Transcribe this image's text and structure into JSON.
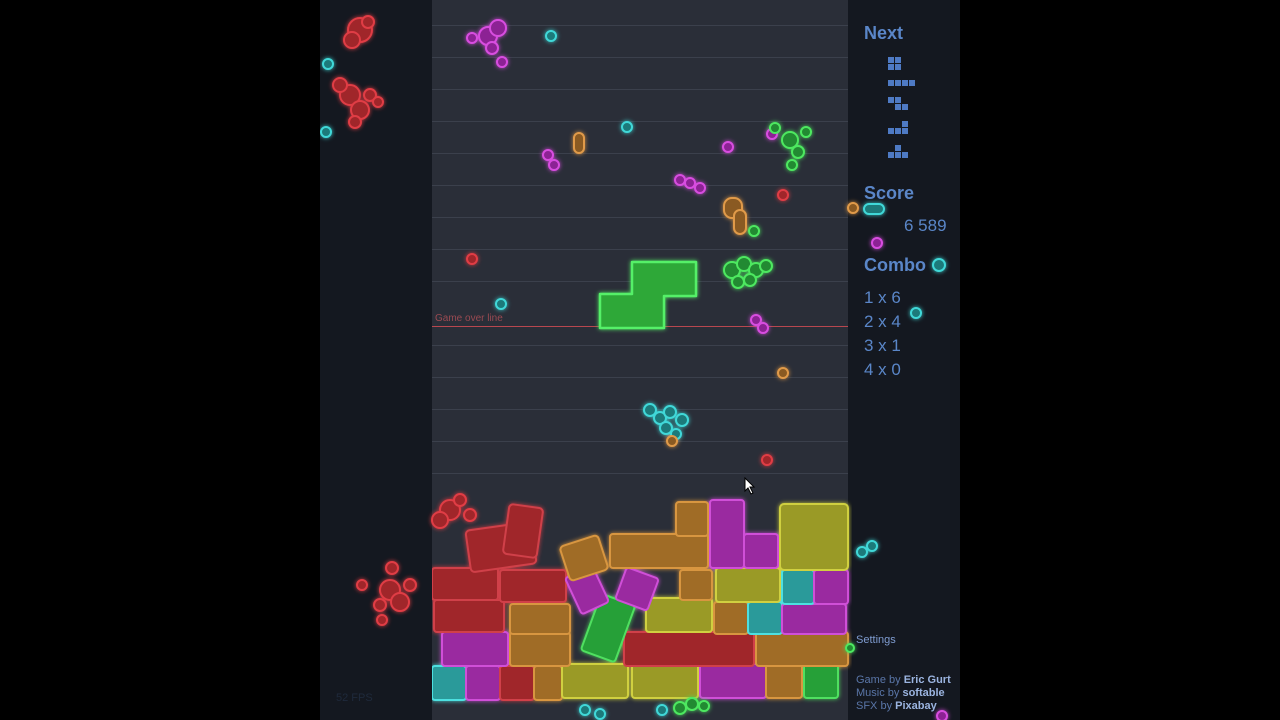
{
  "game": {
    "gameover_label": "Game over line",
    "next_title": "Next",
    "next_queue": [
      "O",
      "I",
      "Z",
      "L",
      "T"
    ],
    "score_title": "Score",
    "score_value": "6 589",
    "combo_title": "Combo",
    "combos": [
      {
        "label": "1 x 6"
      },
      {
        "label": "2 x 4"
      },
      {
        "label": "3 x 1"
      },
      {
        "label": "4 x 0"
      }
    ],
    "settings_label": "Settings",
    "credits": [
      {
        "role": "Game by ",
        "name": "Eric Gurt"
      },
      {
        "role": "Music by ",
        "name": "softable"
      },
      {
        "role": "SFX by ",
        "name": "Pixabay"
      }
    ],
    "fps": "52 FPS",
    "falling_piece": {
      "type": "S",
      "color": "green"
    }
  },
  "colors": {
    "red": "#b8282e",
    "orange": "#c8802e",
    "yellow": "#b8b830",
    "purple": "#b02ab8",
    "cyan": "#2ab0b0",
    "green": "#30c040",
    "hud": "#5a86c8",
    "gameover_line": "#b8474f"
  }
}
